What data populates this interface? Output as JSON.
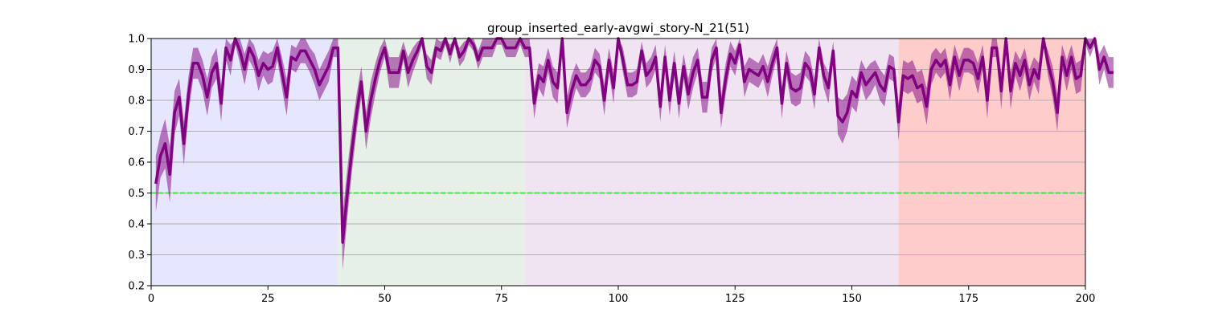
{
  "chart_data": {
    "type": "line",
    "title": "group_inserted_early-avgwi_story-N_21(51)",
    "xlabel": "",
    "ylabel": "",
    "xlim": [
      0,
      200
    ],
    "ylim": [
      0.2,
      1.0
    ],
    "x_ticks": [
      0,
      25,
      50,
      75,
      100,
      125,
      150,
      175,
      200
    ],
    "y_ticks": [
      0.2,
      0.3,
      0.4,
      0.5,
      0.6,
      0.7,
      0.8,
      0.9,
      1.0
    ],
    "y_grid": true,
    "reference_line": {
      "y": 0.5,
      "color": "#22dd22",
      "style": "dashed"
    },
    "regions": [
      {
        "x0": 0,
        "x1": 40,
        "color": "#e6e6ff"
      },
      {
        "x0": 40,
        "x1": 80,
        "color": "#e6f0e6"
      },
      {
        "x0": 80,
        "x1": 160,
        "color": "#f0e4f2"
      },
      {
        "x0": 160,
        "x1": 200,
        "color": "#ffcccc"
      }
    ],
    "series": [
      {
        "color": "#800080",
        "band_color": "#800080",
        "x_start": 1,
        "values": [
          0.53,
          0.62,
          0.66,
          0.56,
          0.76,
          0.81,
          0.66,
          0.82,
          0.92,
          0.92,
          0.88,
          0.81,
          0.89,
          0.92,
          0.79,
          0.97,
          0.93,
          1.0,
          0.96,
          0.9,
          0.97,
          0.94,
          0.88,
          0.92,
          0.9,
          0.91,
          0.97,
          0.89,
          0.81,
          0.94,
          0.93,
          0.96,
          0.96,
          0.93,
          0.9,
          0.85,
          0.88,
          0.91,
          0.97,
          0.97,
          0.34,
          0.5,
          0.64,
          0.76,
          0.86,
          0.7,
          0.8,
          0.87,
          0.93,
          0.97,
          0.89,
          0.89,
          0.89,
          0.96,
          0.89,
          0.93,
          0.96,
          1.0,
          0.91,
          0.89,
          0.97,
          0.96,
          1.0,
          0.95,
          1.0,
          0.94,
          0.96,
          1.0,
          0.98,
          0.93,
          0.97,
          0.97,
          0.97,
          1.0,
          1.0,
          0.97,
          0.97,
          0.97,
          1.0,
          0.97,
          0.97,
          0.79,
          0.88,
          0.86,
          0.93,
          0.86,
          0.84,
          1.0,
          0.76,
          0.83,
          0.88,
          0.85,
          0.85,
          0.87,
          0.93,
          0.91,
          0.8,
          0.93,
          0.84,
          1.0,
          0.93,
          0.85,
          0.85,
          0.86,
          0.96,
          0.88,
          0.9,
          0.94,
          0.78,
          0.94,
          0.8,
          0.92,
          0.79,
          0.91,
          0.82,
          0.89,
          0.93,
          0.81,
          0.81,
          0.93,
          0.97,
          0.76,
          0.87,
          0.95,
          0.92,
          0.98,
          0.86,
          0.9,
          0.89,
          0.88,
          0.91,
          0.86,
          0.92,
          0.97,
          0.79,
          0.92,
          0.84,
          0.83,
          0.84,
          0.92,
          0.9,
          0.82,
          0.97,
          0.88,
          0.84,
          0.96,
          0.75,
          0.73,
          0.76,
          0.83,
          0.81,
          0.89,
          0.85,
          0.87,
          0.89,
          0.85,
          0.83,
          0.91,
          0.9,
          0.73,
          0.88,
          0.87,
          0.88,
          0.84,
          0.85,
          0.78,
          0.9,
          0.93,
          0.91,
          0.93,
          0.85,
          0.94,
          0.88,
          0.93,
          0.93,
          0.92,
          0.87,
          0.94,
          0.8,
          0.97,
          0.97,
          0.83,
          1.0,
          0.83,
          0.92,
          0.88,
          0.93,
          0.85,
          0.9,
          0.87,
          1.0,
          0.92,
          0.86,
          0.76,
          0.94,
          0.88,
          0.94,
          0.87,
          0.88,
          1.0,
          0.97,
          1.0,
          0.9,
          0.94,
          0.89,
          0.89
        ],
        "band_halfwidth": [
          0.09,
          0.07,
          0.08,
          0.09,
          0.07,
          0.06,
          0.07,
          0.06,
          0.05,
          0.05,
          0.05,
          0.06,
          0.05,
          0.05,
          0.06,
          0.04,
          0.05,
          0.02,
          0.04,
          0.05,
          0.04,
          0.04,
          0.05,
          0.04,
          0.05,
          0.05,
          0.04,
          0.05,
          0.06,
          0.04,
          0.04,
          0.04,
          0.04,
          0.04,
          0.05,
          0.05,
          0.05,
          0.05,
          0.03,
          0.03,
          0.09,
          0.08,
          0.07,
          0.06,
          0.05,
          0.06,
          0.06,
          0.05,
          0.04,
          0.03,
          0.05,
          0.05,
          0.05,
          0.03,
          0.05,
          0.04,
          0.03,
          0.02,
          0.04,
          0.04,
          0.03,
          0.03,
          0.02,
          0.03,
          0.02,
          0.03,
          0.03,
          0.02,
          0.02,
          0.03,
          0.03,
          0.03,
          0.03,
          0.02,
          0.02,
          0.03,
          0.03,
          0.03,
          0.02,
          0.03,
          0.03,
          0.05,
          0.04,
          0.05,
          0.04,
          0.05,
          0.05,
          0.02,
          0.05,
          0.05,
          0.04,
          0.04,
          0.04,
          0.04,
          0.04,
          0.04,
          0.05,
          0.04,
          0.05,
          0.02,
          0.04,
          0.04,
          0.04,
          0.04,
          0.03,
          0.04,
          0.04,
          0.04,
          0.05,
          0.04,
          0.05,
          0.04,
          0.05,
          0.04,
          0.05,
          0.05,
          0.04,
          0.05,
          0.05,
          0.04,
          0.03,
          0.05,
          0.05,
          0.04,
          0.04,
          0.03,
          0.05,
          0.04,
          0.04,
          0.04,
          0.04,
          0.05,
          0.04,
          0.03,
          0.05,
          0.04,
          0.05,
          0.05,
          0.05,
          0.04,
          0.04,
          0.05,
          0.03,
          0.04,
          0.05,
          0.03,
          0.06,
          0.07,
          0.06,
          0.05,
          0.05,
          0.04,
          0.05,
          0.05,
          0.04,
          0.05,
          0.05,
          0.04,
          0.04,
          0.06,
          0.05,
          0.05,
          0.05,
          0.05,
          0.05,
          0.06,
          0.05,
          0.04,
          0.04,
          0.04,
          0.05,
          0.04,
          0.05,
          0.04,
          0.04,
          0.04,
          0.05,
          0.04,
          0.06,
          0.03,
          0.03,
          0.06,
          0.02,
          0.06,
          0.04,
          0.05,
          0.04,
          0.05,
          0.04,
          0.05,
          0.02,
          0.04,
          0.05,
          0.06,
          0.04,
          0.05,
          0.04,
          0.05,
          0.05,
          0.02,
          0.03,
          0.02,
          0.05,
          0.04,
          0.05,
          0.05
        ]
      }
    ]
  }
}
